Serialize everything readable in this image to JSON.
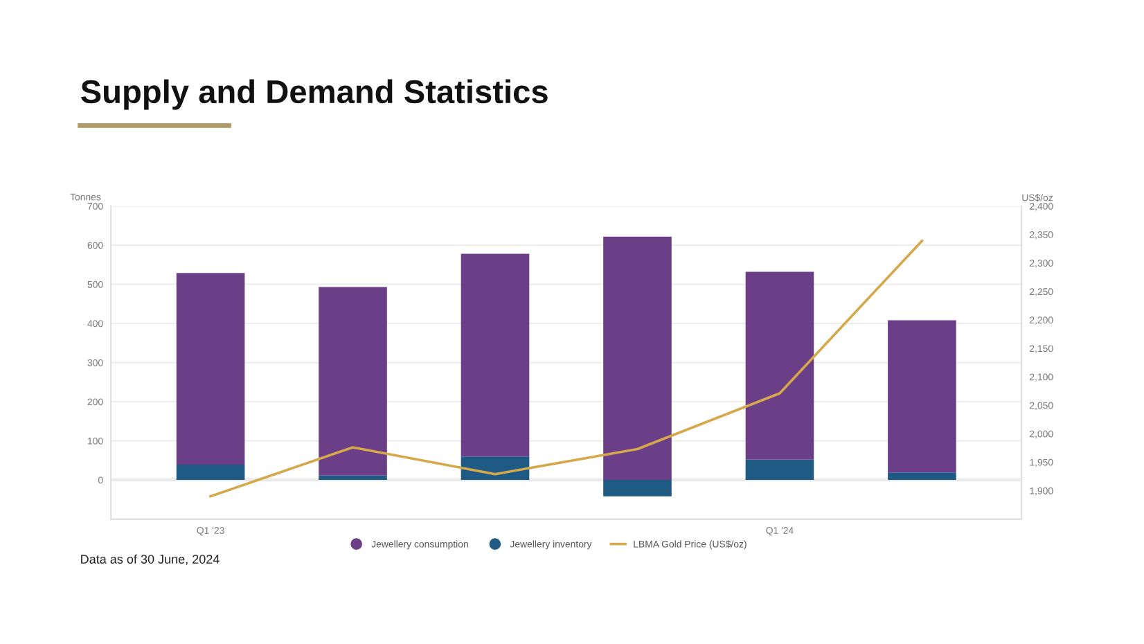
{
  "chart_data": {
    "type": "bar",
    "title": "Supply and Demand Statistics",
    "ylabel": "Tonnes",
    "y2label": "US$/oz",
    "categories": [
      "Q1 '23",
      null,
      null,
      null,
      "Q1 '24",
      null
    ],
    "stacked": true,
    "series": [
      {
        "name": "Jewellery inventory",
        "color": "#1f5a85",
        "values": [
          39,
          11,
          60,
          -42,
          52,
          19
        ]
      },
      {
        "name": "Jewellery consumption",
        "color": "#6b3f87",
        "values": [
          490,
          482,
          518,
          622,
          480,
          389
        ]
      },
      {
        "name": "LBMA Gold Price (US$/oz)",
        "type": "line",
        "axis": "y2",
        "color": "#d4a84b",
        "values": [
          1890,
          1976,
          1929,
          1973,
          2071,
          2339
        ]
      }
    ],
    "ylim": [
      -100,
      700
    ],
    "yticks": [
      0,
      100,
      200,
      300,
      400,
      500,
      600,
      700
    ],
    "y2lim": [
      1850,
      2400
    ],
    "y2ticks": [
      {
        "value": 1900,
        "label": "1,900"
      },
      {
        "value": 1950,
        "label": "1,950"
      },
      {
        "value": 2000,
        "label": "2,000"
      },
      {
        "value": 2050,
        "label": "2,050"
      },
      {
        "value": 2100,
        "label": "2,100"
      },
      {
        "value": 2150,
        "label": "2,150"
      },
      {
        "value": 2200,
        "label": "2,200"
      },
      {
        "value": 2250,
        "label": "2,250"
      },
      {
        "value": 2300,
        "label": "2,300"
      },
      {
        "value": 2350,
        "label": "2,350"
      },
      {
        "value": 2400,
        "label": "2,400"
      }
    ],
    "grid": "y",
    "legend": "bottom",
    "annotations": [
      "Data as of 30 June, 2024"
    ]
  }
}
